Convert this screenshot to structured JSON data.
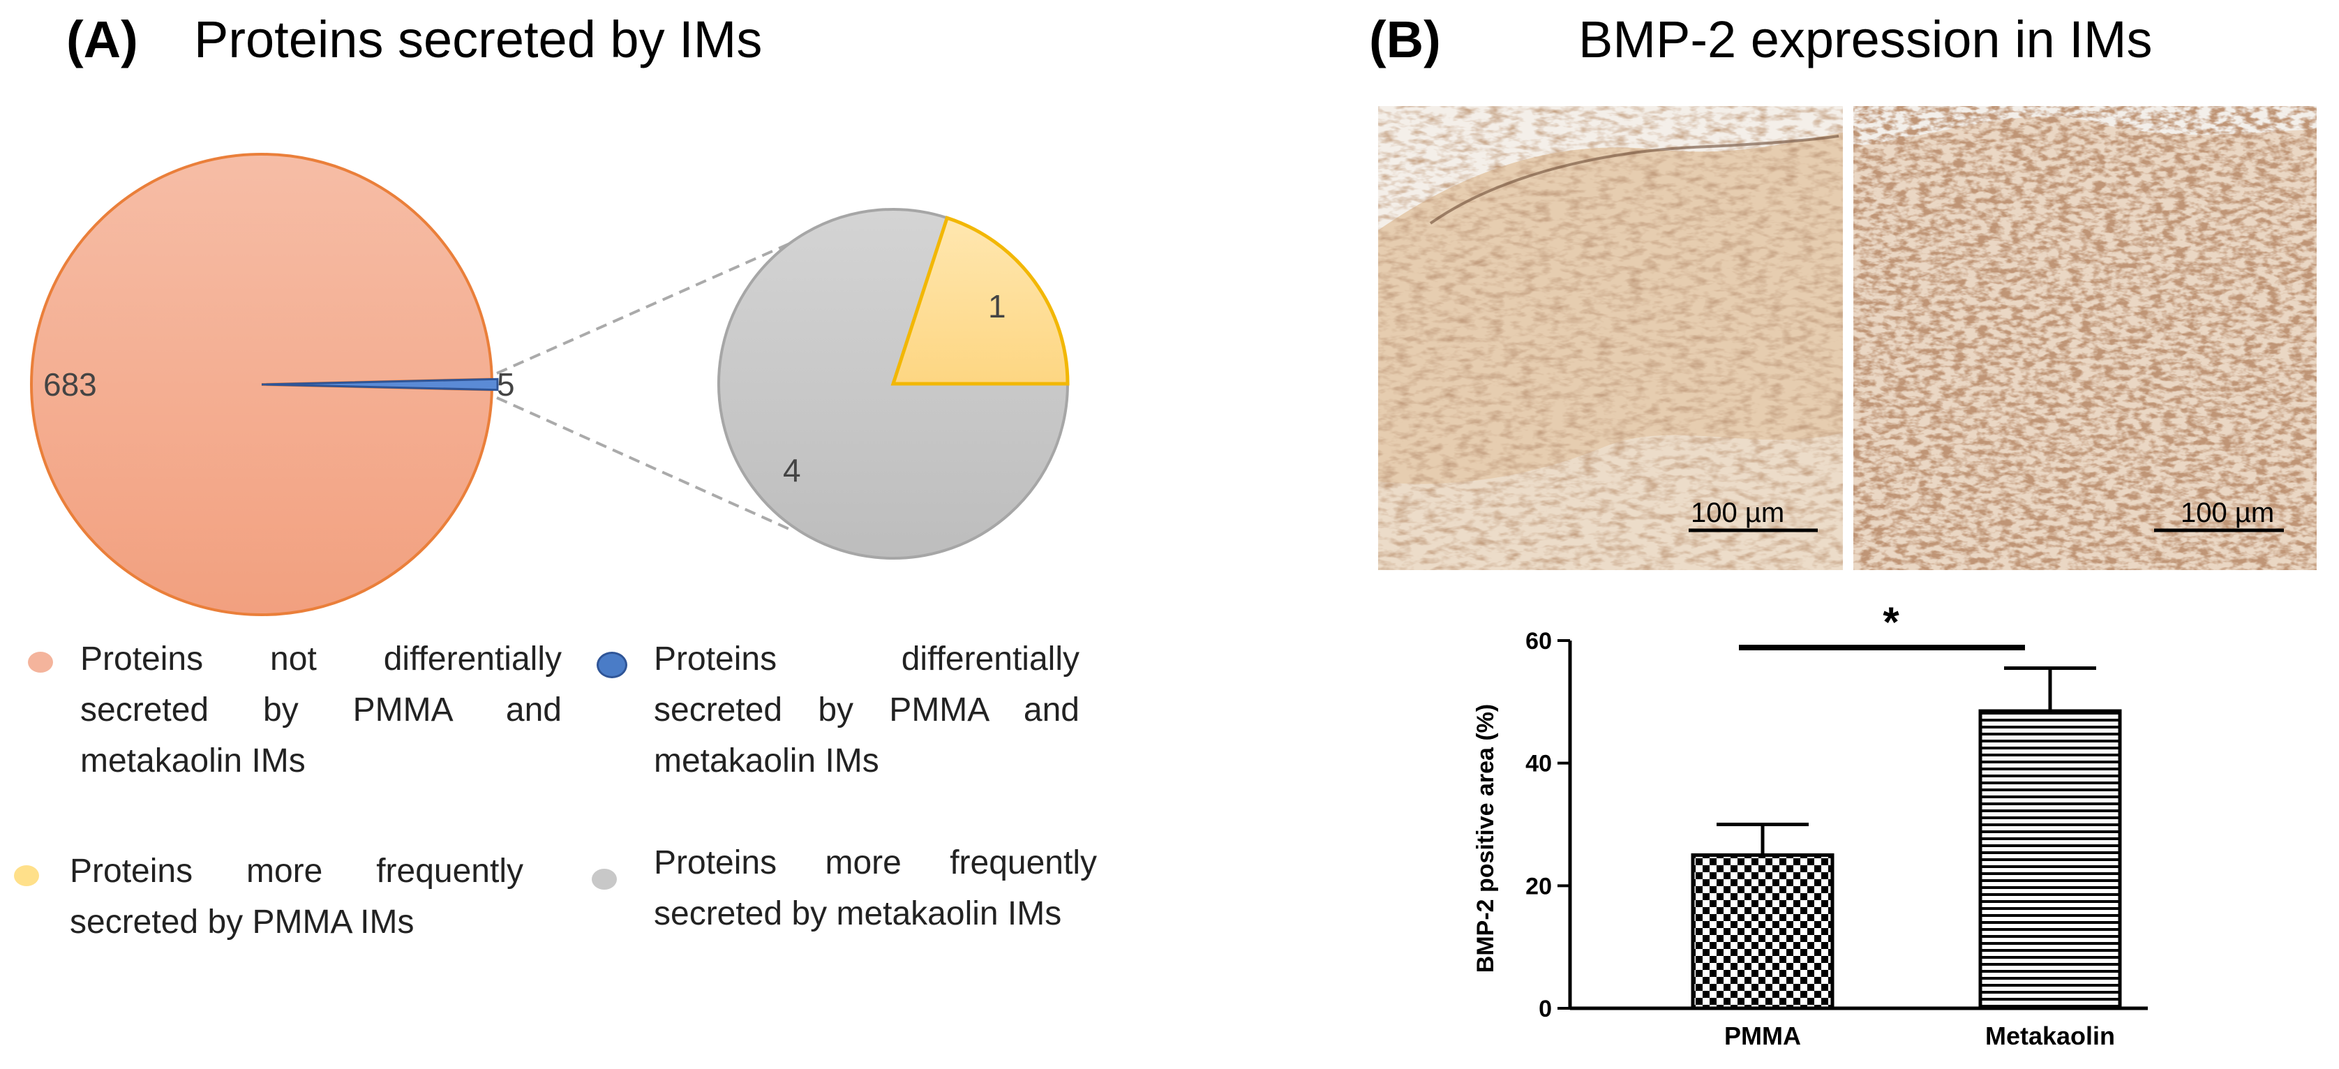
{
  "panel_a": {
    "letter": "(A)",
    "title": "Proteins secreted by IMs",
    "legend": [
      {
        "label": "Proteins not differentially secreted by PMMA and metakaolin IMs",
        "color": "#f4b49c"
      },
      {
        "label": "Proteins differentially secreted by PMMA and metakaolin IMs",
        "color": "#4a7cc7"
      },
      {
        "label": "Proteins more frequently secreted by PMMA IMs",
        "color": "#ffe08a"
      },
      {
        "label": "Proteins more frequently secreted by metakaolin IMs",
        "color": "#c8c8c8"
      }
    ]
  },
  "panel_b": {
    "letter": "(B)",
    "title": "BMP-2 expression in IMs",
    "scale_bar_left": "100 µm",
    "scale_bar_right": "100 µm"
  },
  "chart_data": [
    {
      "type": "pie",
      "categories": [
        "Proteins not differentially secreted by PMMA and metakaolin IMs",
        "Proteins differentially secreted by PMMA and metakaolin IMs"
      ],
      "values": [
        683,
        5
      ],
      "labels": [
        "683",
        "5"
      ],
      "colors": [
        "#f4b49c",
        "#4a7cc7"
      ]
    },
    {
      "type": "pie",
      "categories": [
        "Proteins more frequently secreted by PMMA IMs",
        "Proteins more frequently secreted by metakaolin IMs"
      ],
      "values": [
        1,
        4
      ],
      "labels": [
        "1",
        "4"
      ],
      "colors": [
        "#ffd98a",
        "#c8c8c8"
      ]
    },
    {
      "type": "bar",
      "categories": [
        "PMMA",
        "Metakaolin"
      ],
      "values": [
        25,
        48.5
      ],
      "errors": [
        5,
        7
      ],
      "ylabel": "BMP-2 positive area (%)",
      "xlabel": "",
      "ylim": [
        0,
        60
      ],
      "yticks": [
        0,
        20,
        40,
        60
      ],
      "significance": "*"
    }
  ]
}
